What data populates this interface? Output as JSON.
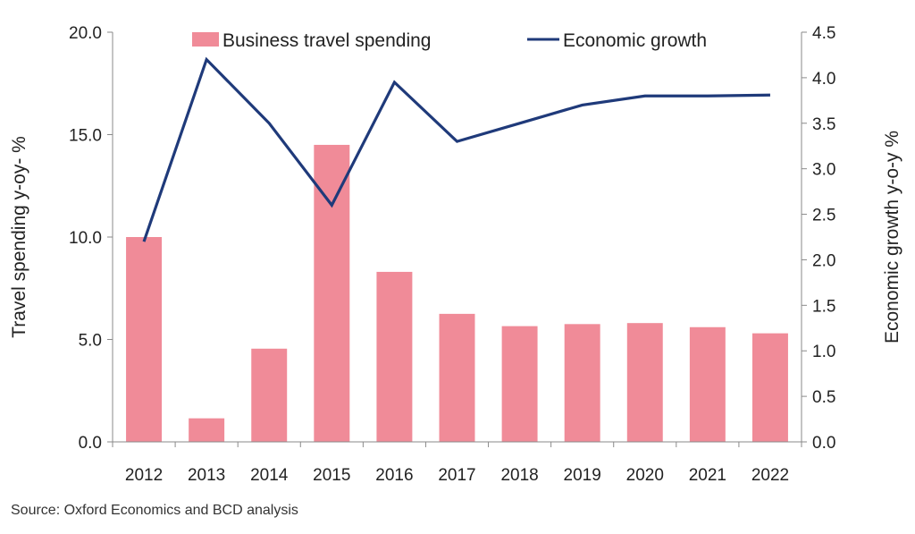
{
  "chart_data": {
    "type": "bar+line",
    "categories": [
      "2012",
      "2013",
      "2014",
      "2015",
      "2016",
      "2017",
      "2018",
      "2019",
      "2020",
      "2021",
      "2022"
    ],
    "series": [
      {
        "name": "Business travel spending",
        "type": "bar",
        "axis": "left",
        "color": "#f08b98",
        "values": [
          10.0,
          1.15,
          4.55,
          14.5,
          8.3,
          6.25,
          5.65,
          5.75,
          5.8,
          5.6,
          5.3
        ]
      },
      {
        "name": "Economic growth",
        "type": "line",
        "axis": "right",
        "color": "#1f3a7a",
        "values": [
          2.2,
          4.2,
          3.5,
          2.6,
          3.95,
          3.3,
          3.5,
          3.7,
          3.8,
          3.8,
          3.81
        ]
      }
    ],
    "left_axis": {
      "label": "Travel spending y-oy- %",
      "range": [
        0,
        20
      ],
      "ticks": [
        "0.0",
        "5.0",
        "10.0",
        "15.0",
        "20.0"
      ]
    },
    "right_axis": {
      "label": "Economic growth y-o-y %",
      "range": [
        0,
        4.5
      ],
      "ticks": [
        "0.0",
        "0.5",
        "1.0",
        "1.5",
        "2.0",
        "2.5",
        "3.0",
        "3.5",
        "4.0",
        "4.5"
      ]
    },
    "legend": "top",
    "grid": false
  },
  "source_text": "Source: Oxford Economics and BCD analysis"
}
